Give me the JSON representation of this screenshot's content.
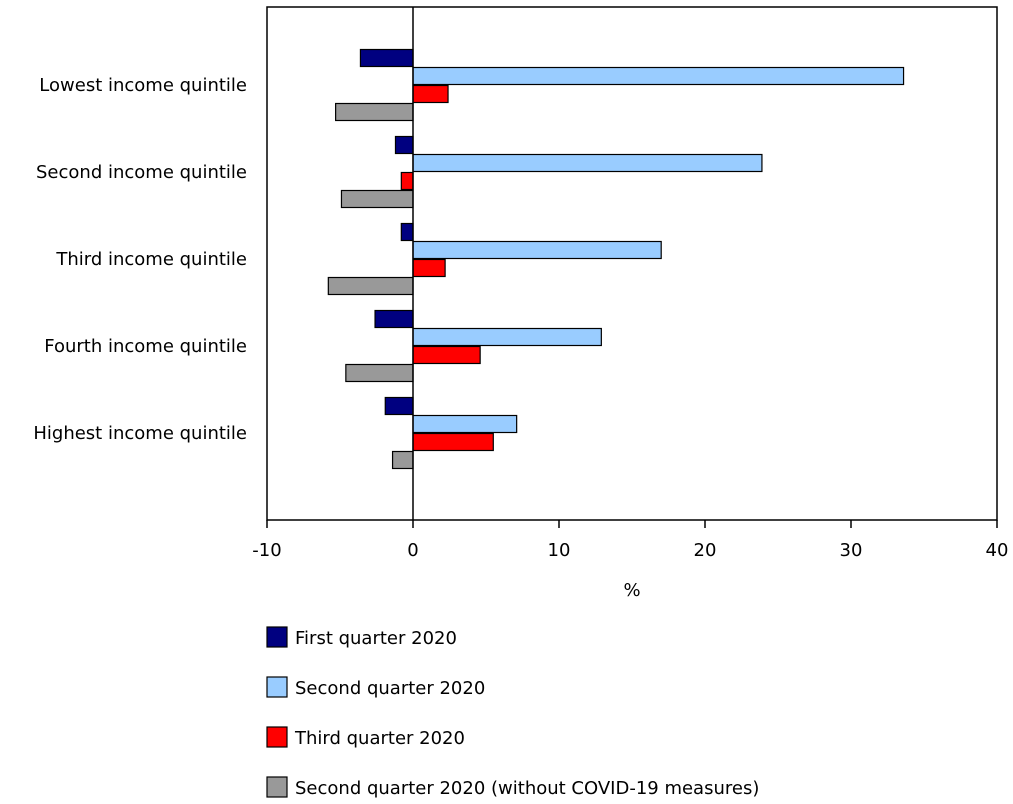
{
  "chart_data": {
    "type": "bar",
    "orientation": "horizontal",
    "categories": [
      "Lowest income quintile",
      "Second income quintile",
      "Third income quintile",
      "Fourth income quintile",
      "Highest income quintile"
    ],
    "series": [
      {
        "name": "First quarter 2020",
        "color": "#000080",
        "values": [
          -3.6,
          -1.2,
          -0.8,
          -2.6,
          -1.9
        ]
      },
      {
        "name": "Second quarter 2020",
        "color": "#99ccff",
        "values": [
          33.6,
          23.9,
          17.0,
          12.9,
          7.1
        ]
      },
      {
        "name": "Third quarter 2020",
        "color": "#ff0000",
        "values": [
          2.4,
          -0.8,
          2.2,
          4.6,
          5.5
        ]
      },
      {
        "name": "Second quarter 2020 (without COVID-19 measures)",
        "color": "#999999",
        "values": [
          -5.3,
          -4.9,
          -5.8,
          -4.6,
          -1.4
        ]
      }
    ],
    "xlabel": "%",
    "ylabel": "",
    "xlim": [
      -10,
      40
    ],
    "xticks": [
      -10,
      0,
      10,
      20,
      30,
      40
    ],
    "grid": false,
    "legend_position": "bottom"
  }
}
